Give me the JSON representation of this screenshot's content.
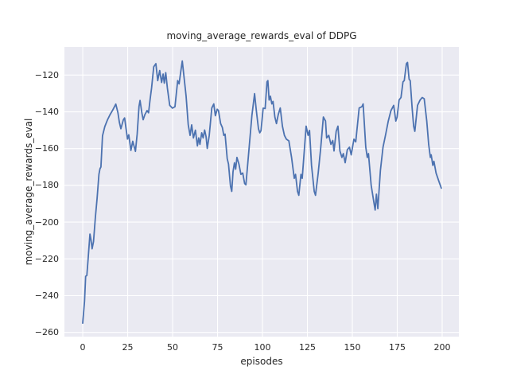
{
  "chart_data": {
    "type": "line",
    "title": "moving_average_rewards_eval of DDPG",
    "xlabel": "episodes",
    "ylabel": "moving_average_rewards_eval",
    "xlim": [
      -10.2,
      209.3
    ],
    "ylim": [
      -262.3,
      -104.7
    ],
    "x_ticks": [
      0,
      25,
      50,
      75,
      100,
      125,
      150,
      175,
      200
    ],
    "x_tick_labels": [
      "0",
      "25",
      "50",
      "75",
      "100",
      "125",
      "150",
      "175",
      "200"
    ],
    "y_ticks": [
      -260,
      -240,
      -220,
      -200,
      -180,
      -160,
      -140,
      -120
    ],
    "y_tick_labels": [
      "−260",
      "−240",
      "−220",
      "−200",
      "−180",
      "−160",
      "−140",
      "−120"
    ],
    "grid": true,
    "legend": false,
    "colors": {
      "line": "#4c72b0",
      "plot_bg": "#eaeaf2",
      "grid": "#ffffff",
      "text": "#262626",
      "figure_bg": "#ffffff"
    },
    "series": [
      {
        "name": "moving_average_rewards_eval",
        "points": [
          [
            0,
            -255
          ],
          [
            1,
            -243
          ],
          [
            1.6,
            -229.5
          ],
          [
            2.3,
            -229
          ],
          [
            3,
            -220
          ],
          [
            4,
            -206.5
          ],
          [
            4.6,
            -209.5
          ],
          [
            5.2,
            -214.5
          ],
          [
            6,
            -210.5
          ],
          [
            7,
            -197.5
          ],
          [
            8,
            -187
          ],
          [
            9,
            -174
          ],
          [
            9.6,
            -171
          ],
          [
            10.1,
            -170
          ],
          [
            11,
            -153
          ],
          [
            12.3,
            -148
          ],
          [
            13.7,
            -144.5
          ],
          [
            15.2,
            -141.5
          ],
          [
            16.7,
            -139
          ],
          [
            18.4,
            -135.8
          ],
          [
            19.6,
            -140.5
          ],
          [
            20.4,
            -145.7
          ],
          [
            21.2,
            -149.2
          ],
          [
            22.6,
            -144.3
          ],
          [
            23.3,
            -143.3
          ],
          [
            24.1,
            -149.2
          ],
          [
            24.9,
            -154.8
          ],
          [
            25.6,
            -152.5
          ],
          [
            26.8,
            -161
          ],
          [
            27.8,
            -156
          ],
          [
            29.3,
            -161.5
          ],
          [
            30.3,
            -152
          ],
          [
            31.3,
            -137
          ],
          [
            31.9,
            -133.8
          ],
          [
            32.9,
            -140.7
          ],
          [
            33.6,
            -144.3
          ],
          [
            34.6,
            -141.5
          ],
          [
            35.8,
            -139.3
          ],
          [
            36.6,
            -140.5
          ],
          [
            37.5,
            -133
          ],
          [
            38.3,
            -127
          ],
          [
            39.5,
            -115.5
          ],
          [
            40.7,
            -113.8
          ],
          [
            41.7,
            -123
          ],
          [
            42.8,
            -117.5
          ],
          [
            43.9,
            -124
          ],
          [
            44.7,
            -119.4
          ],
          [
            45.4,
            -124.4
          ],
          [
            46.2,
            -118.7
          ],
          [
            47.1,
            -127.2
          ],
          [
            48.4,
            -136.5
          ],
          [
            49.9,
            -138
          ],
          [
            51.3,
            -137.2
          ],
          [
            52.8,
            -123
          ],
          [
            53.6,
            -124.8
          ],
          [
            54.4,
            -119
          ],
          [
            55.4,
            -112.3
          ],
          [
            56.5,
            -122.3
          ],
          [
            57.5,
            -131.5
          ],
          [
            58.7,
            -147.1
          ],
          [
            59.7,
            -152.8
          ],
          [
            60.6,
            -147.1
          ],
          [
            61.6,
            -154.2
          ],
          [
            62.7,
            -150
          ],
          [
            63.8,
            -158.5
          ],
          [
            64.5,
            -154.2
          ],
          [
            65.2,
            -157.7
          ],
          [
            66.2,
            -151.4
          ],
          [
            67,
            -154.2
          ],
          [
            67.8,
            -149.9
          ],
          [
            68.6,
            -153.5
          ],
          [
            69.3,
            -159.9
          ],
          [
            70.4,
            -152.8
          ],
          [
            71.8,
            -137.9
          ],
          [
            72.9,
            -135.7
          ],
          [
            73.8,
            -142.1
          ],
          [
            74.8,
            -138.6
          ],
          [
            75.5,
            -139.3
          ],
          [
            76.7,
            -146.4
          ],
          [
            77.7,
            -148.5
          ],
          [
            78.5,
            -152.8
          ],
          [
            79.2,
            -152.1
          ],
          [
            80.4,
            -165.5
          ],
          [
            81.1,
            -168.4
          ],
          [
            82.2,
            -180.4
          ],
          [
            82.9,
            -183.3
          ],
          [
            83.6,
            -172.6
          ],
          [
            84.4,
            -167.7
          ],
          [
            85.1,
            -171.2
          ],
          [
            85.8,
            -164.8
          ],
          [
            86.9,
            -168.4
          ],
          [
            88,
            -174
          ],
          [
            89,
            -173.3
          ],
          [
            90.1,
            -179
          ],
          [
            90.8,
            -179.7
          ],
          [
            92.6,
            -159.2
          ],
          [
            94.1,
            -142.1
          ],
          [
            95.6,
            -130.1
          ],
          [
            96.6,
            -139.3
          ],
          [
            97.8,
            -149.2
          ],
          [
            98.5,
            -151.4
          ],
          [
            99.2,
            -150.2
          ],
          [
            100.4,
            -138
          ],
          [
            101.5,
            -138.2
          ],
          [
            102.5,
            -123.7
          ],
          [
            103,
            -123
          ],
          [
            103.7,
            -133.6
          ],
          [
            104.4,
            -131.5
          ],
          [
            105.2,
            -135.7
          ],
          [
            105.9,
            -134.3
          ],
          [
            106.9,
            -142.8
          ],
          [
            107.8,
            -146.4
          ],
          [
            108.8,
            -141.4
          ],
          [
            109.9,
            -137.9
          ],
          [
            111.1,
            -147.8
          ],
          [
            112.2,
            -152.8
          ],
          [
            113.3,
            -154.9
          ],
          [
            114.7,
            -155.8
          ],
          [
            116.2,
            -164.8
          ],
          [
            117.7,
            -176.2
          ],
          [
            118.4,
            -174
          ],
          [
            119.5,
            -183.3
          ],
          [
            120.2,
            -185.4
          ],
          [
            121.4,
            -174
          ],
          [
            122.1,
            -176.2
          ],
          [
            123.3,
            -160.6
          ],
          [
            124.3,
            -147.8
          ],
          [
            125.4,
            -152.8
          ],
          [
            126.2,
            -150.1
          ],
          [
            127.3,
            -169.1
          ],
          [
            128.8,
            -183.3
          ],
          [
            129.5,
            -185.4
          ],
          [
            131,
            -173.3
          ],
          [
            132.4,
            -159.9
          ],
          [
            133.9,
            -142.8
          ],
          [
            135.1,
            -145
          ],
          [
            135.7,
            -154.2
          ],
          [
            136.9,
            -152.8
          ],
          [
            138.1,
            -157.7
          ],
          [
            139.1,
            -155.6
          ],
          [
            139.8,
            -161.3
          ],
          [
            141,
            -150.6
          ],
          [
            142,
            -147.8
          ],
          [
            143.1,
            -161.3
          ],
          [
            144.2,
            -164.8
          ],
          [
            145,
            -162.7
          ],
          [
            146,
            -167.7
          ],
          [
            147.2,
            -160.6
          ],
          [
            148.4,
            -159.2
          ],
          [
            149.4,
            -163.4
          ],
          [
            150.9,
            -154.9
          ],
          [
            151.9,
            -156.3
          ],
          [
            153.8,
            -137.9
          ],
          [
            155.3,
            -137.2
          ],
          [
            156,
            -135.7
          ],
          [
            157.5,
            -159.2
          ],
          [
            158.3,
            -164.8
          ],
          [
            159,
            -162.7
          ],
          [
            160.5,
            -180
          ],
          [
            162,
            -189.2
          ],
          [
            162.7,
            -193.4
          ],
          [
            163.4,
            -184.8
          ],
          [
            164.2,
            -192.7
          ],
          [
            165.6,
            -171.9
          ],
          [
            167.1,
            -159.2
          ],
          [
            168.6,
            -152.1
          ],
          [
            170,
            -145
          ],
          [
            171.5,
            -139.3
          ],
          [
            173,
            -136.5
          ],
          [
            174.2,
            -145
          ],
          [
            174.9,
            -142.8
          ],
          [
            176,
            -133.6
          ],
          [
            177.1,
            -132.2
          ],
          [
            178.2,
            -123.7
          ],
          [
            178.9,
            -123
          ],
          [
            180.1,
            -113.8
          ],
          [
            180.7,
            -113.1
          ],
          [
            181.6,
            -122.3
          ],
          [
            182.2,
            -123
          ],
          [
            183.3,
            -137.9
          ],
          [
            184.1,
            -147.8
          ],
          [
            184.8,
            -150.6
          ],
          [
            186.3,
            -136.5
          ],
          [
            187.7,
            -133.6
          ],
          [
            188.9,
            -132.2
          ],
          [
            190,
            -132.9
          ],
          [
            191.4,
            -145
          ],
          [
            192.5,
            -157.7
          ],
          [
            193.4,
            -164.8
          ],
          [
            193.9,
            -163.4
          ],
          [
            194.8,
            -169.1
          ],
          [
            195.4,
            -166.9
          ],
          [
            196.6,
            -173.3
          ],
          [
            198.1,
            -177.6
          ],
          [
            199.5,
            -181.5
          ]
        ]
      }
    ]
  }
}
